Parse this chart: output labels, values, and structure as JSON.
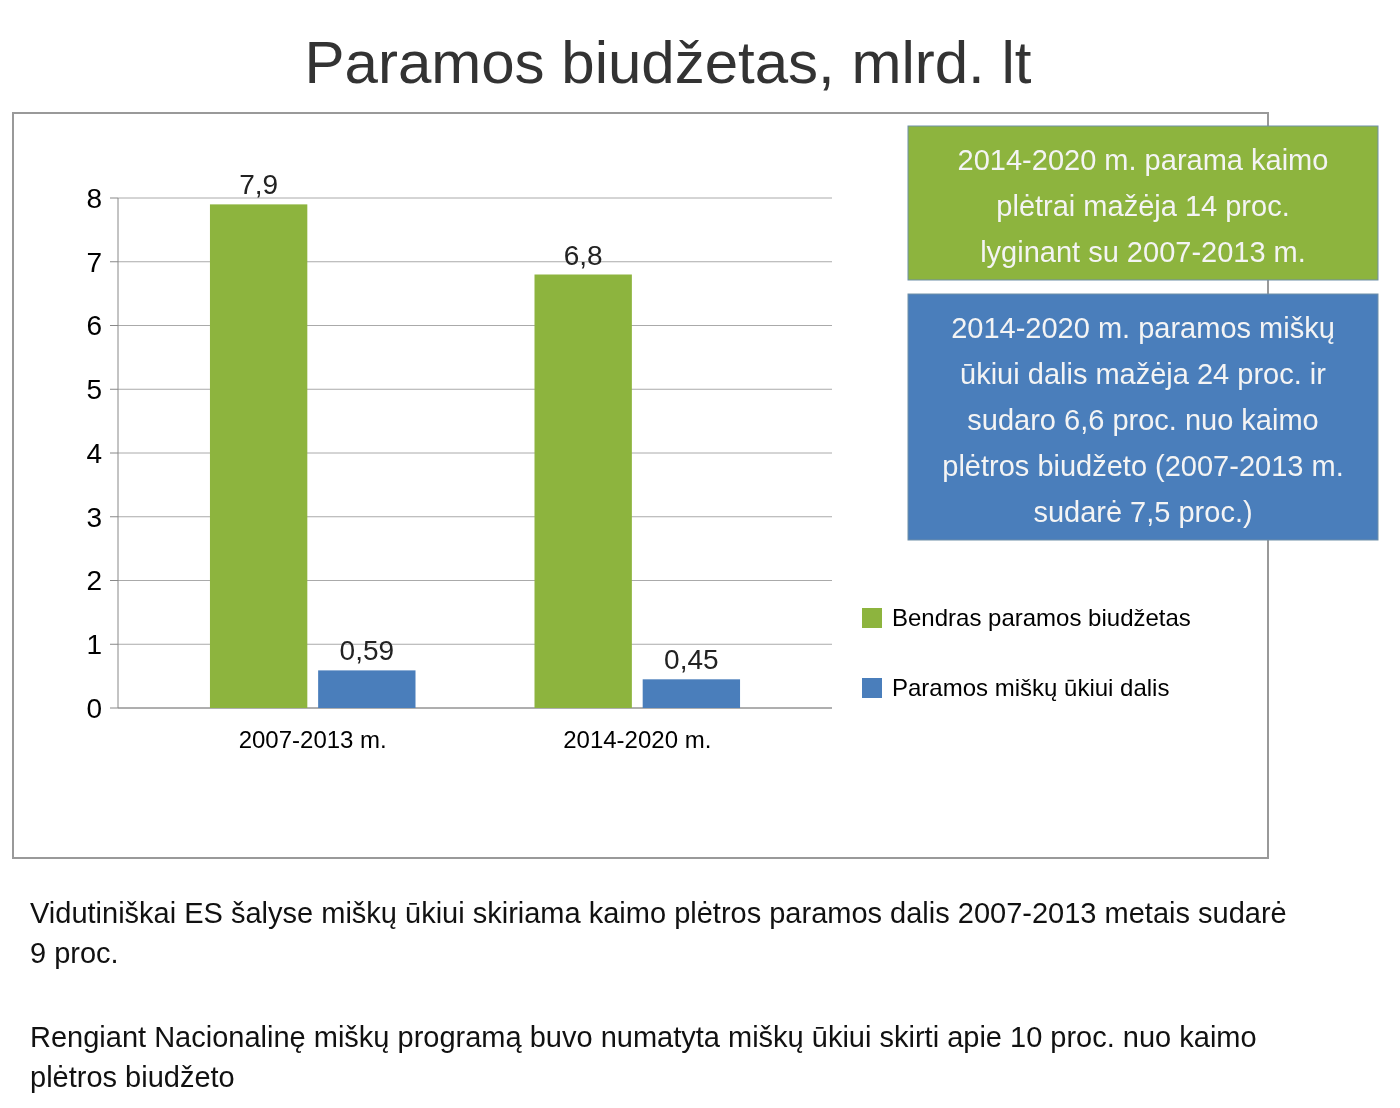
{
  "chart_data": {
    "type": "bar",
    "title": "Paramos biudžetas, mlrd. lt",
    "categories": [
      "2007-2013 m.",
      "2014-2020 m."
    ],
    "series": [
      {
        "name": "Bendras paramos biudžetas",
        "color": "#8db43e",
        "values": [
          7.9,
          6.8
        ],
        "value_labels": [
          "7,9",
          "6,8"
        ]
      },
      {
        "name": "Paramos miškų ūkiui dalis",
        "color": "#4a7ebb",
        "values": [
          0.59,
          0.45
        ],
        "value_labels": [
          "0,59",
          "0,45"
        ]
      }
    ],
    "ylim": [
      0,
      8
    ],
    "yticks": [
      0,
      1,
      2,
      3,
      4,
      5,
      6,
      7,
      8
    ],
    "grid": "y",
    "legend": "right",
    "annotations": [
      "2014-2020 m. parama kaimo plėtrai mažėja 14 proc. lyginant su 2007-2013 m.",
      "2014-2020 m. paramos miškų ūkiui dalis mažėja 24 proc. ir sudaro 6,6 proc. nuo kaimo plėtros biudžeto (2007-2013 m. sudarė 7,5 proc.)",
      "Vidutiniškai ES šalyse miškų ūkiui skiriama kaimo plėtros paramos dalis 2007-2013 metais sudarė 9 proc.",
      "Rengiant Nacionalinę miškų programą buvo numatyta miškų ūkiui skirti apie 10 proc. nuo kaimo plėtros biudžeto"
    ]
  }
}
